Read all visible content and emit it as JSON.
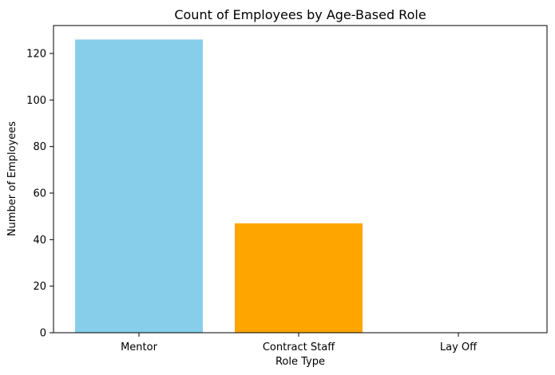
{
  "chart_data": {
    "type": "bar",
    "title": "Count of Employees by Age-Based Role",
    "xlabel": "Role Type",
    "ylabel": "Number of Employees",
    "categories": [
      "Mentor",
      "Contract Staff",
      "Lay Off"
    ],
    "values": [
      126,
      47,
      0
    ],
    "colors": [
      "#87ceeb",
      "#ffa500",
      "#ffffff"
    ],
    "ylim": [
      0,
      132
    ],
    "yticks": [
      0,
      20,
      40,
      60,
      80,
      100,
      120
    ],
    "grid": false,
    "legend": "none"
  }
}
